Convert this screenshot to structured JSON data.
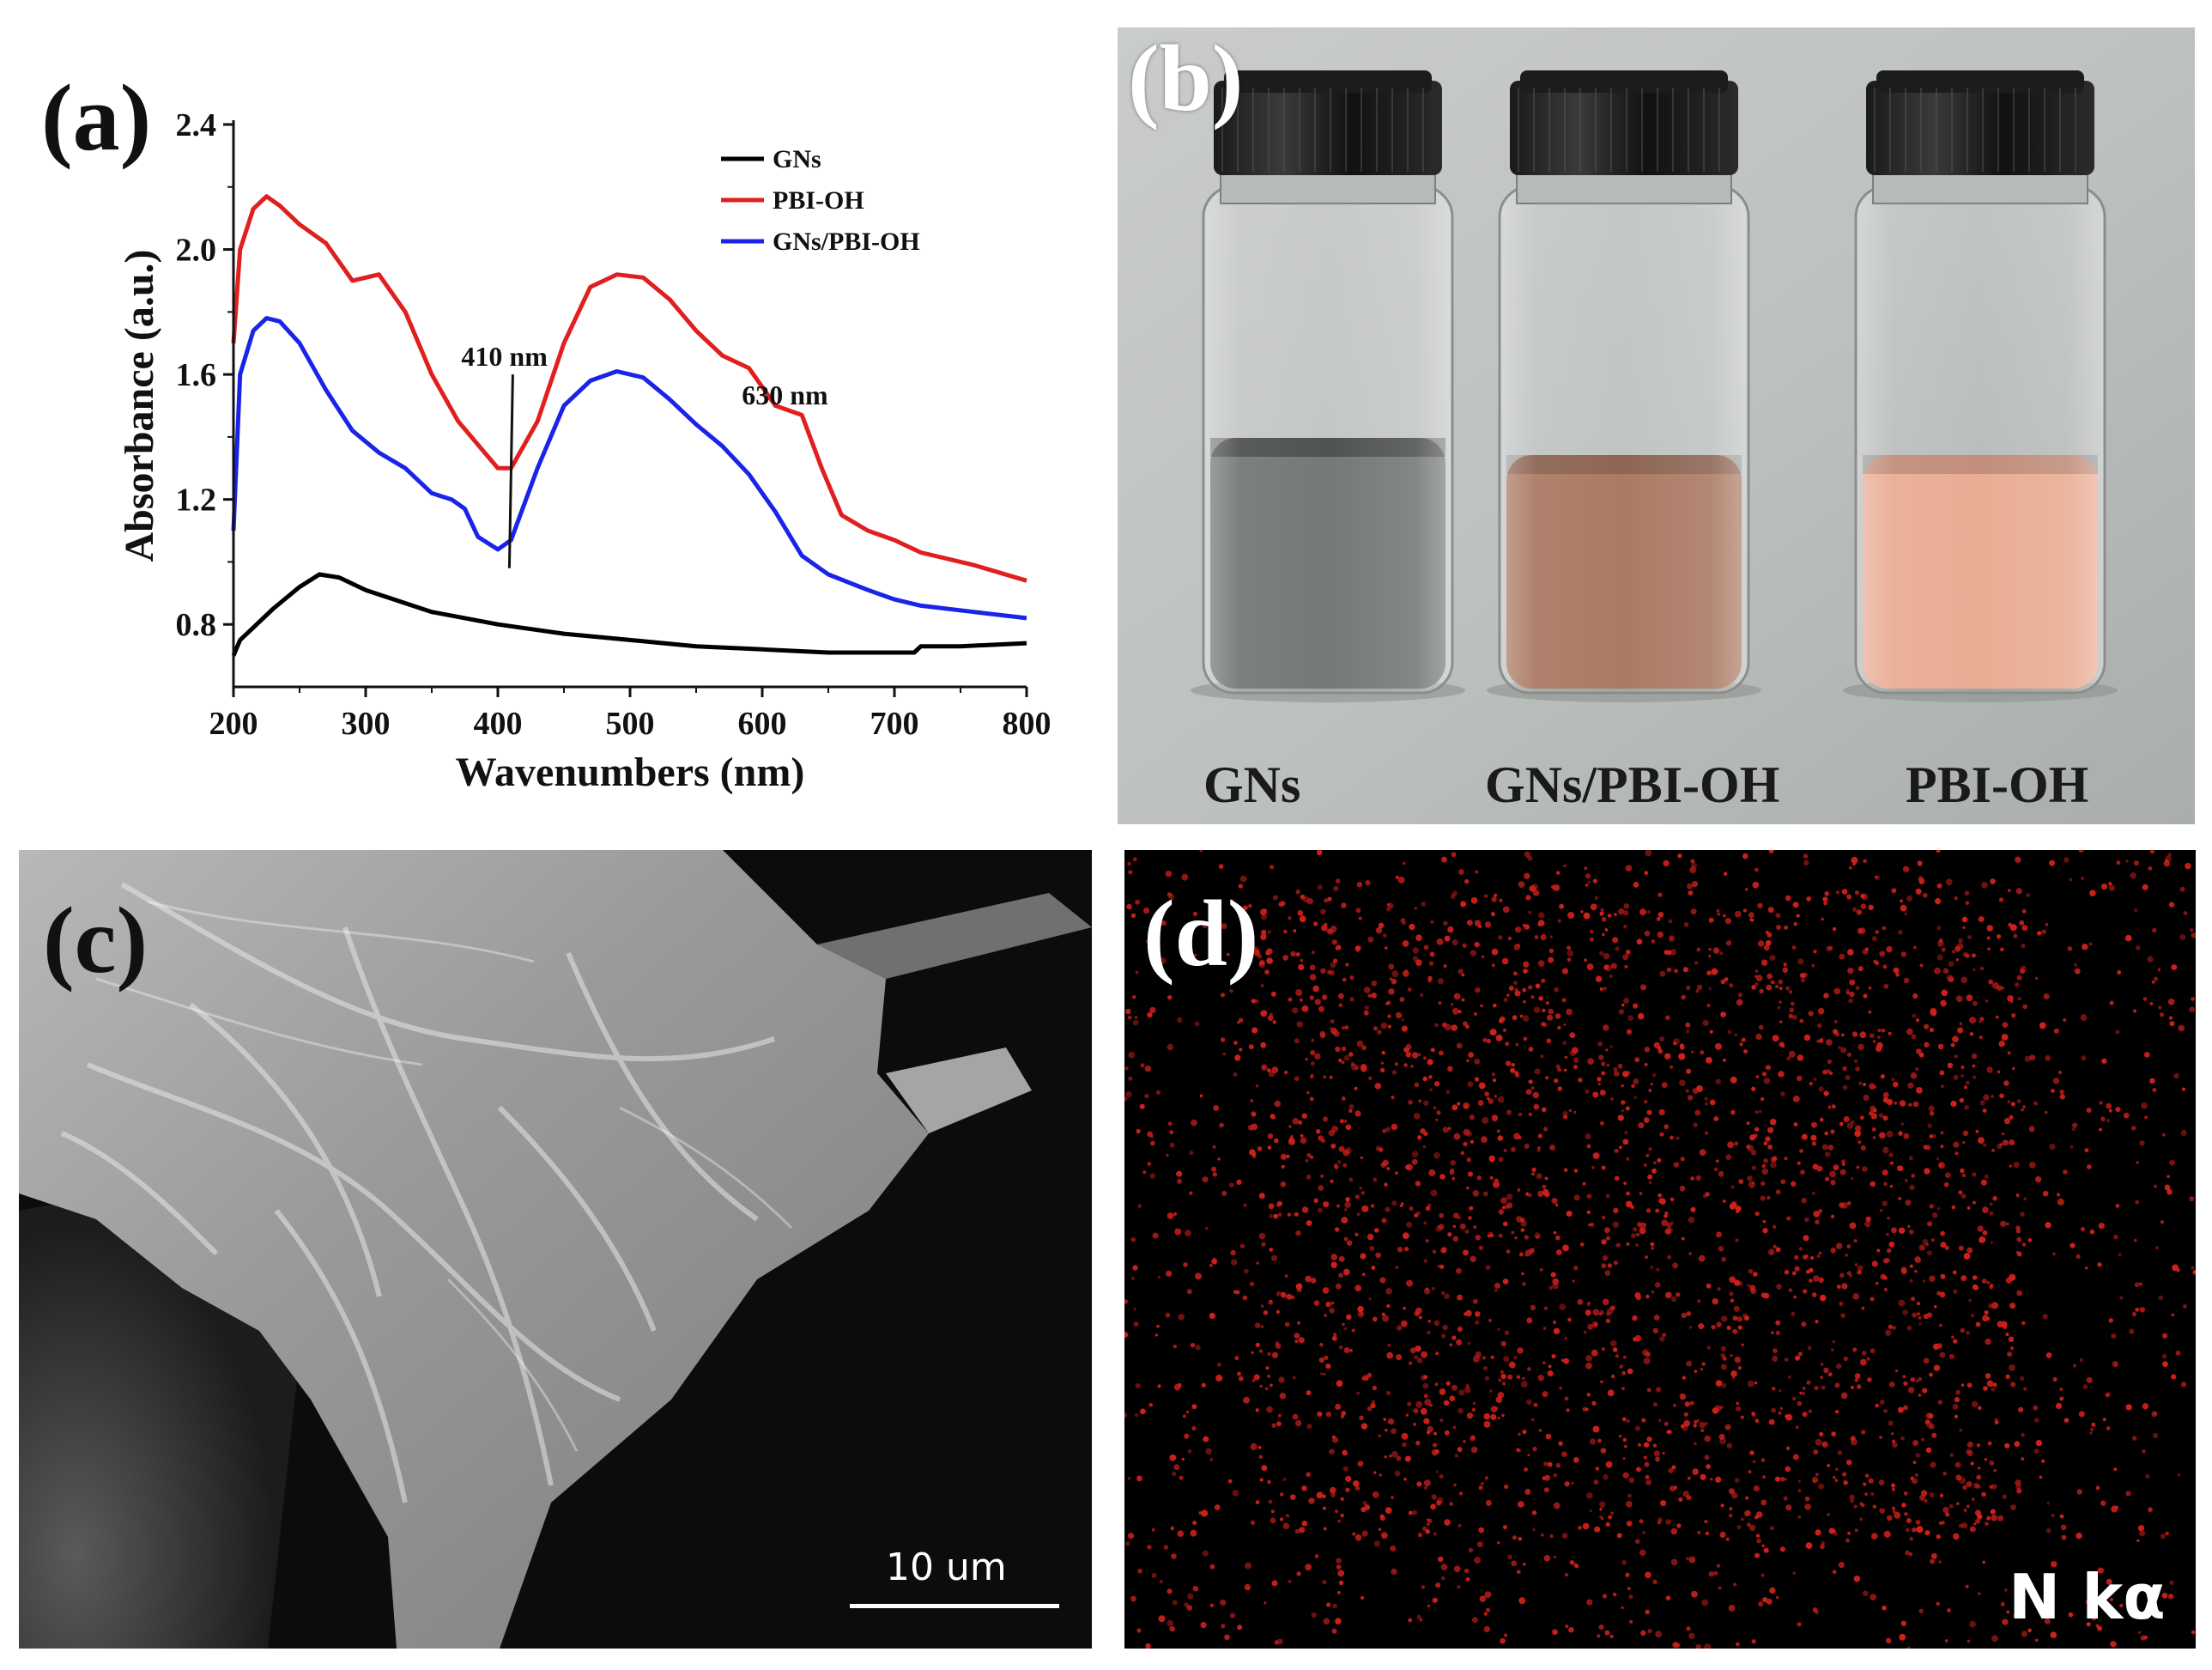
{
  "panels": {
    "a": {
      "label": "(a)"
    },
    "b": {
      "label": "(b)",
      "vials": [
        {
          "caption": "GNs",
          "liquid_color": "#6e7172"
        },
        {
          "caption": "GNs/PBI-OH",
          "liquid_color": "#a7735c"
        },
        {
          "caption": "PBI-OH",
          "liquid_color": "#e8a88e"
        }
      ]
    },
    "c": {
      "label": "(c)",
      "scale_bar": "10 um"
    },
    "d": {
      "label": "(d)",
      "element": "N kα",
      "dot_color": "#d0201c"
    }
  },
  "chart_data": {
    "type": "line",
    "xlabel": "Wavenumbers (nm)",
    "ylabel": "Absorbance (a.u.)",
    "xlim": [
      200,
      800
    ],
    "ylim": [
      0.6,
      2.4
    ],
    "x_ticks": [
      200,
      300,
      400,
      500,
      600,
      700,
      800
    ],
    "y_ticks": [
      0.8,
      1.2,
      1.6,
      2.0,
      2.4
    ],
    "legend_position": "top-right",
    "annotations": [
      {
        "text": "410 nm",
        "x": 410
      },
      {
        "text": "630 nm",
        "x": 630
      }
    ],
    "series": [
      {
        "name": "GNs",
        "color": "#000000",
        "x": [
          200,
          205,
          215,
          230,
          250,
          265,
          280,
          300,
          350,
          400,
          450,
          500,
          550,
          600,
          650,
          700,
          715,
          720,
          750,
          800
        ],
        "y": [
          0.7,
          0.75,
          0.79,
          0.85,
          0.92,
          0.96,
          0.95,
          0.91,
          0.84,
          0.8,
          0.77,
          0.75,
          0.73,
          0.72,
          0.71,
          0.71,
          0.71,
          0.73,
          0.73,
          0.74
        ]
      },
      {
        "name": "PBI-OH",
        "color": "#e01f1f",
        "x": [
          200,
          205,
          215,
          225,
          235,
          250,
          270,
          290,
          310,
          330,
          350,
          370,
          390,
          400,
          410,
          430,
          450,
          470,
          490,
          510,
          530,
          550,
          570,
          590,
          610,
          630,
          645,
          660,
          680,
          700,
          720,
          760,
          800
        ],
        "y": [
          1.7,
          2.0,
          2.13,
          2.17,
          2.14,
          2.08,
          2.02,
          1.9,
          1.92,
          1.8,
          1.6,
          1.45,
          1.35,
          1.3,
          1.3,
          1.45,
          1.7,
          1.88,
          1.92,
          1.91,
          1.84,
          1.74,
          1.66,
          1.62,
          1.5,
          1.47,
          1.3,
          1.15,
          1.1,
          1.07,
          1.03,
          0.99,
          0.94
        ]
      },
      {
        "name": "GNs/PBI-OH",
        "color": "#1a24e8",
        "x": [
          200,
          205,
          215,
          225,
          235,
          250,
          270,
          290,
          310,
          330,
          350,
          365,
          375,
          385,
          400,
          410,
          430,
          450,
          470,
          490,
          510,
          530,
          550,
          570,
          590,
          610,
          630,
          650,
          680,
          700,
          720,
          760,
          800
        ],
        "y": [
          1.1,
          1.6,
          1.74,
          1.78,
          1.77,
          1.7,
          1.55,
          1.42,
          1.35,
          1.3,
          1.22,
          1.2,
          1.17,
          1.08,
          1.04,
          1.07,
          1.3,
          1.5,
          1.58,
          1.61,
          1.59,
          1.52,
          1.44,
          1.37,
          1.28,
          1.16,
          1.02,
          0.96,
          0.91,
          0.88,
          0.86,
          0.84,
          0.82
        ]
      }
    ]
  }
}
